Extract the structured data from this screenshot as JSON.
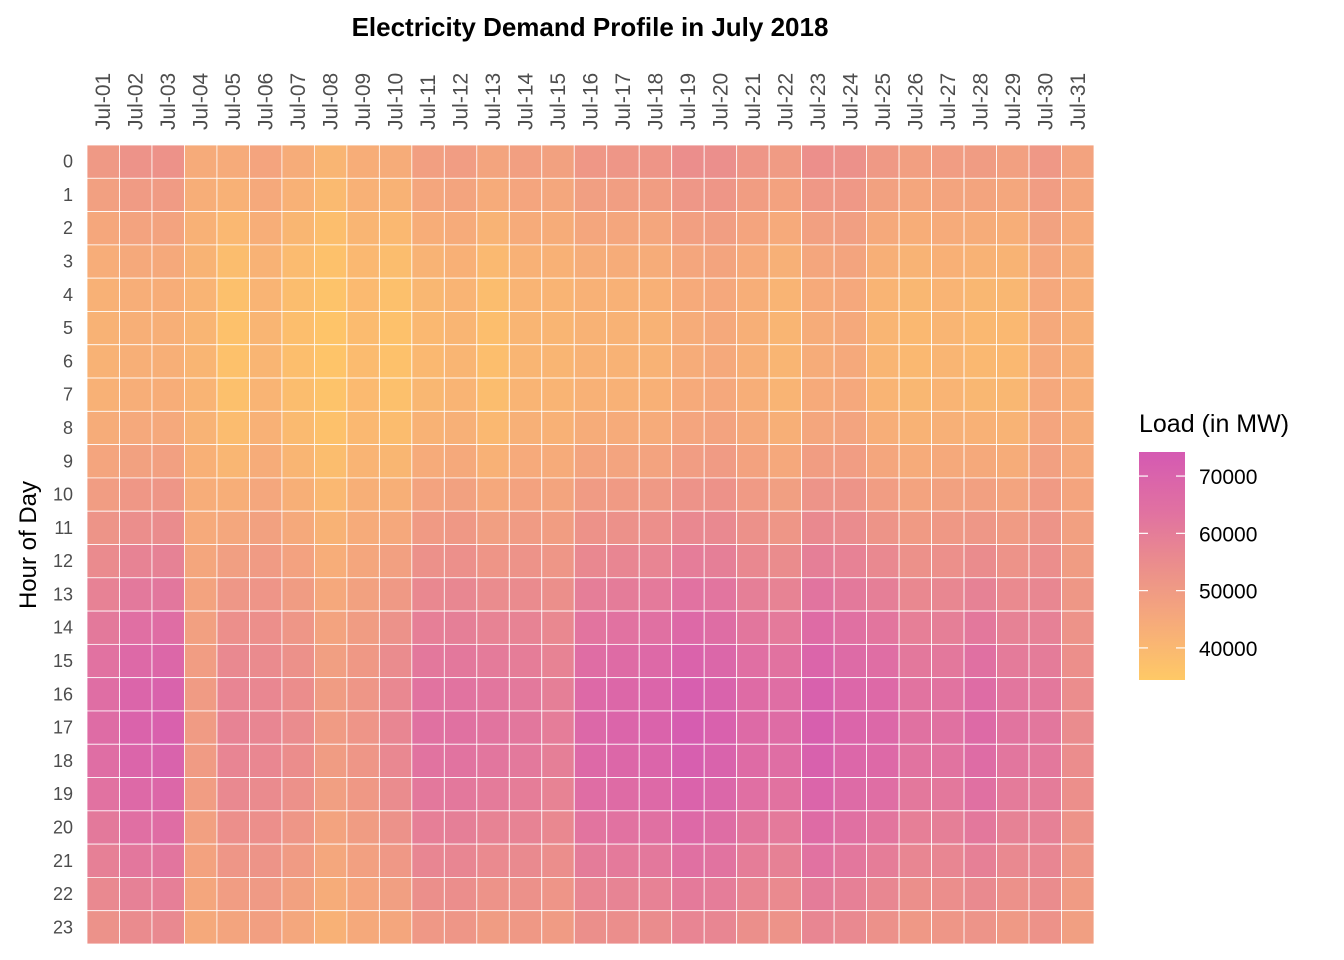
{
  "chart_data": {
    "type": "heatmap",
    "title": "Electricity Demand Profile in July 2018",
    "xlabel": "",
    "ylabel": "Hour of Day",
    "x_categories": [
      "Jul-01",
      "Jul-02",
      "Jul-03",
      "Jul-04",
      "Jul-05",
      "Jul-06",
      "Jul-07",
      "Jul-08",
      "Jul-09",
      "Jul-10",
      "Jul-11",
      "Jul-12",
      "Jul-13",
      "Jul-14",
      "Jul-15",
      "Jul-16",
      "Jul-17",
      "Jul-18",
      "Jul-19",
      "Jul-20",
      "Jul-21",
      "Jul-22",
      "Jul-23",
      "Jul-24",
      "Jul-25",
      "Jul-26",
      "Jul-27",
      "Jul-28",
      "Jul-29",
      "Jul-30",
      "Jul-31"
    ],
    "y_categories": [
      "0",
      "1",
      "2",
      "3",
      "4",
      "5",
      "6",
      "7",
      "8",
      "9",
      "10",
      "11",
      "12",
      "13",
      "14",
      "15",
      "16",
      "17",
      "18",
      "19",
      "20",
      "21",
      "22",
      "23"
    ],
    "x_axis_position": "top",
    "y_order": "0 at top",
    "legend": {
      "title": "Load (in MW)",
      "position": "right",
      "ticks": [
        "40000",
        "50000",
        "60000",
        "70000"
      ],
      "tick_values": [
        40000,
        50000,
        60000,
        70000
      ],
      "range": [
        34400,
        74200
      ]
    },
    "color_scale": {
      "low": "#FFC966",
      "mid_low": "#F6AB7A",
      "mid": "#EB8E8C",
      "mid_high": "#E070A2",
      "high": "#D55AB2"
    },
    "grid": false,
    "values_by_day": [
      [
        50400,
        48000,
        45600,
        43700,
        42500,
        42000,
        42000,
        42500,
        43900,
        46300,
        49200,
        52100,
        55200,
        58300,
        61200,
        63600,
        65300,
        66000,
        65300,
        63600,
        61200,
        58800,
        55900,
        53000
      ],
      [
        52500,
        49800,
        47100,
        44900,
        43500,
        43000,
        43000,
        43500,
        45200,
        47900,
        51100,
        54300,
        57900,
        61400,
        64600,
        67300,
        69200,
        70000,
        69200,
        67300,
        64600,
        61900,
        58700,
        55400
      ],
      [
        52800,
        50000,
        47200,
        45000,
        43600,
        43000,
        43000,
        43600,
        45200,
        48000,
        51400,
        54800,
        58400,
        62000,
        65400,
        68200,
        70200,
        71000,
        70200,
        68200,
        65400,
        62600,
        59200,
        55900
      ],
      [
        44200,
        43300,
        42400,
        41600,
        41200,
        41000,
        41000,
        41200,
        41700,
        42600,
        43700,
        44800,
        46000,
        47100,
        48200,
        49100,
        49700,
        50000,
        49700,
        49100,
        48200,
        47300,
        46200,
        45100
      ],
      [
        44400,
        42300,
        40200,
        38500,
        37400,
        37000,
        37000,
        37400,
        38700,
        40800,
        43300,
        45800,
        48600,
        51300,
        53800,
        55900,
        57400,
        58000,
        57400,
        55900,
        53800,
        51700,
        49200,
        46700
      ],
      [
        46600,
        45000,
        43400,
        42100,
        41300,
        41000,
        41000,
        41300,
        42300,
        43900,
        45800,
        47700,
        49800,
        51900,
        53800,
        55400,
        56500,
        57000,
        56500,
        55400,
        53800,
        52200,
        50300,
        48400
      ],
      [
        44000,
        42300,
        40600,
        39200,
        38300,
        38000,
        38000,
        38300,
        39400,
        41100,
        43100,
        45100,
        47400,
        49600,
        51600,
        53300,
        54500,
        55000,
        54500,
        53300,
        51600,
        49900,
        47900,
        45800
      ],
      [
        40900,
        39500,
        38100,
        37000,
        36300,
        36000,
        36000,
        36300,
        37100,
        38500,
        40200,
        41900,
        43700,
        45500,
        47200,
        48600,
        49600,
        50000,
        49600,
        48600,
        47200,
        45800,
        44100,
        42400
      ],
      [
        43600,
        42300,
        41000,
        39900,
        39300,
        39000,
        39000,
        39300,
        40000,
        41300,
        42900,
        44500,
        46200,
        47800,
        49400,
        50700,
        51600,
        52000,
        51600,
        50700,
        49400,
        48100,
        46500,
        45000
      ],
      [
        44000,
        42000,
        40000,
        38400,
        37400,
        37000,
        37000,
        37400,
        38600,
        40600,
        43000,
        45400,
        48000,
        50600,
        53000,
        55000,
        56400,
        57000,
        56400,
        55000,
        53000,
        51000,
        48600,
        46200
      ],
      [
        48400,
        46000,
        43600,
        41700,
        40500,
        40000,
        40000,
        40500,
        41900,
        44300,
        47200,
        50100,
        53200,
        56300,
        59200,
        61600,
        63300,
        64000,
        63300,
        61600,
        59200,
        56800,
        53900,
        51000
      ],
      [
        49100,
        46800,
        44500,
        42600,
        41500,
        41000,
        41000,
        41500,
        42800,
        45100,
        47900,
        50700,
        53700,
        56600,
        59400,
        61700,
        63300,
        64000,
        63300,
        61700,
        59400,
        57100,
        54300,
        51600
      ],
      [
        46800,
        44300,
        41800,
        39800,
        38500,
        38000,
        38000,
        38500,
        40000,
        42500,
        45500,
        48500,
        51800,
        55000,
        58000,
        60500,
        62300,
        63000,
        62300,
        60500,
        58000,
        55500,
        52500,
        49500
      ],
      [
        48400,
        46300,
        44200,
        42500,
        41400,
        41000,
        41000,
        41400,
        42700,
        44800,
        47300,
        49800,
        52600,
        55300,
        57800,
        59900,
        61400,
        62000,
        61400,
        59900,
        57800,
        55700,
        53200,
        50700
      ],
      [
        47700,
        45800,
        43900,
        42300,
        41400,
        41000,
        41000,
        41400,
        42500,
        44400,
        46700,
        49000,
        51500,
        53900,
        56200,
        58100,
        59400,
        60000,
        59400,
        58100,
        56200,
        54300,
        52000,
        49700
      ],
      [
        51100,
        48500,
        45900,
        43800,
        42500,
        42000,
        42000,
        42500,
        44100,
        46700,
        49800,
        52900,
        56300,
        59700,
        62800,
        65400,
        67200,
        68000,
        67200,
        65400,
        62800,
        60200,
        57100,
        54000
      ],
      [
        51500,
        48800,
        46100,
        43900,
        42500,
        42000,
        42000,
        42500,
        44200,
        46900,
        50100,
        53300,
        56900,
        60400,
        63600,
        66300,
        68200,
        69000,
        68200,
        66300,
        63600,
        60900,
        57700,
        54400
      ],
      [
        51800,
        49000,
        46200,
        44000,
        42600,
        42000,
        42000,
        42600,
        44200,
        47000,
        50400,
        53800,
        57400,
        61000,
        64400,
        67200,
        69200,
        70000,
        69200,
        67200,
        64400,
        61600,
        58200,
        54900
      ],
      [
        54200,
        51300,
        48400,
        46000,
        44600,
        44000,
        44000,
        44600,
        46300,
        49200,
        52700,
        56200,
        60000,
        63700,
        67200,
        70100,
        72100,
        73000,
        72100,
        70100,
        67200,
        64300,
        60800,
        57300
      ],
      [
        54100,
        51500,
        48900,
        46800,
        45500,
        45000,
        45000,
        45500,
        47100,
        49700,
        52800,
        55900,
        59300,
        62700,
        65800,
        68400,
        70200,
        71000,
        70200,
        68400,
        65800,
        63200,
        60100,
        57000
      ],
      [
        51400,
        49000,
        46600,
        44700,
        43500,
        43000,
        43000,
        43500,
        44900,
        47300,
        50200,
        53100,
        56200,
        59300,
        62200,
        64600,
        66300,
        67000,
        66300,
        64600,
        62200,
        59800,
        56900,
        54000
      ],
      [
        49800,
        47300,
        44800,
        42800,
        41500,
        41000,
        41000,
        41500,
        43000,
        45500,
        48500,
        51500,
        54800,
        58000,
        61000,
        63500,
        65300,
        66000,
        65300,
        63500,
        61000,
        58500,
        55500,
        52500
      ],
      [
        53800,
        51000,
        48200,
        46000,
        44600,
        44000,
        44000,
        44600,
        46200,
        49000,
        52400,
        55800,
        59400,
        63000,
        66400,
        69200,
        71200,
        72000,
        71200,
        69200,
        66400,
        63600,
        60200,
        56900
      ],
      [
        53400,
        51000,
        48600,
        46700,
        45500,
        45000,
        45000,
        45500,
        46900,
        49300,
        52200,
        55100,
        58200,
        61300,
        64200,
        66600,
        68300,
        69000,
        68300,
        66600,
        64200,
        61800,
        58900,
        56000
      ],
      [
        50500,
        47800,
        45100,
        42900,
        41500,
        41000,
        41000,
        41500,
        43200,
        45900,
        49100,
        52300,
        55900,
        59400,
        62600,
        65300,
        67200,
        68000,
        67200,
        65300,
        62600,
        59900,
        56700,
        53400
      ],
      [
        48400,
        46000,
        43600,
        41700,
        40500,
        40000,
        40000,
        40500,
        41900,
        44300,
        47200,
        50100,
        53200,
        56300,
        59200,
        61600,
        63300,
        64000,
        63300,
        61600,
        59200,
        56800,
        53900,
        51000
      ],
      [
        49100,
        46800,
        44500,
        42600,
        41500,
        41000,
        41000,
        41500,
        42800,
        45100,
        47900,
        50700,
        53700,
        56600,
        59400,
        61700,
        63300,
        64000,
        63300,
        61700,
        59400,
        57100,
        54300,
        51600
      ],
      [
        49500,
        46800,
        44100,
        41900,
        40500,
        40000,
        40000,
        40500,
        42200,
        44900,
        48100,
        51300,
        54900,
        58400,
        61600,
        64300,
        66200,
        67000,
        66200,
        64300,
        61600,
        58900,
        55700,
        52400
      ],
      [
        48100,
        45800,
        43500,
        41600,
        40500,
        40000,
        40000,
        40500,
        41800,
        44100,
        46900,
        49700,
        52700,
        55600,
        58400,
        60700,
        62300,
        63000,
        62300,
        60700,
        58400,
        56100,
        53300,
        50600
      ],
      [
        51000,
        49300,
        47600,
        46200,
        45300,
        45000,
        45000,
        45300,
        46400,
        48100,
        50100,
        52100,
        54400,
        56600,
        58600,
        60300,
        61500,
        62000,
        61500,
        60300,
        58600,
        56900,
        54900,
        52800
      ],
      [
        47200,
        46000,
        44800,
        43800,
        43200,
        43000,
        43000,
        43200,
        44000,
        45200,
        46600,
        48000,
        49600,
        51200,
        52600,
        53800,
        54600,
        55000,
        54600,
        53800,
        52600,
        51400,
        50000,
        48500
      ]
    ]
  }
}
